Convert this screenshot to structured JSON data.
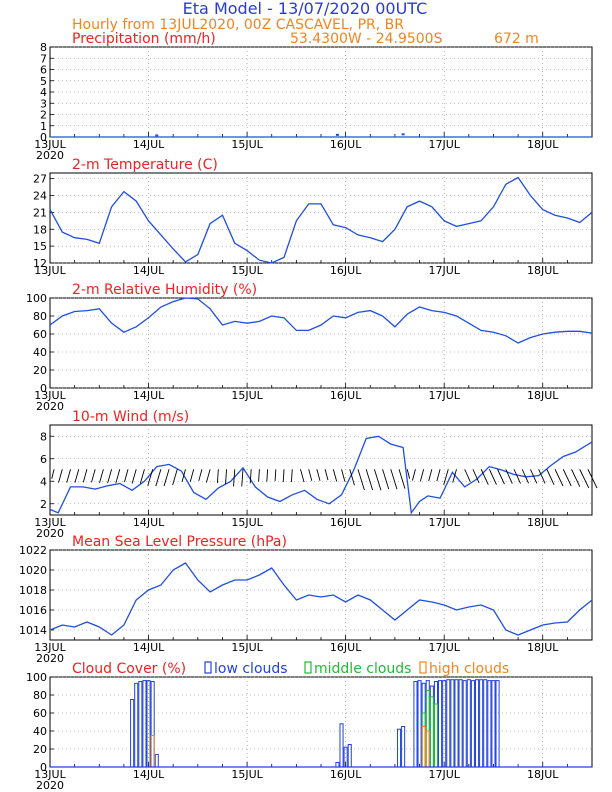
{
  "header": {
    "title": "Eta Model - 13/07/2020 00UTC",
    "subtitle": "Hourly from 13JUL2020, 00Z  CASCAVEL, PR, BR",
    "coords": "53.4300W - 24.9500S",
    "elevation": "672  m"
  },
  "colors": {
    "title": "#2a3bd6",
    "header": "#f0851f",
    "panel_title": "#ee2222",
    "line": "#1f4fe0",
    "low": "#2244dd",
    "mid": "#22bb33",
    "high": "#f0851f",
    "grid": "#888888"
  },
  "x_axis": {
    "day_labels": [
      "13JUL",
      "14JUL",
      "15JUL",
      "16JUL",
      "17JUL",
      "18JUL"
    ],
    "year_label": "2020"
  },
  "chart_data": [
    {
      "type": "line",
      "id": "precip",
      "title": "Precipitation (mm/h)",
      "ylim": [
        0,
        8
      ],
      "yticks": [
        0,
        1,
        2,
        3,
        4,
        5,
        6,
        7,
        8
      ],
      "x_hours": [
        0,
        10,
        20,
        30,
        40,
        50,
        60,
        70,
        80,
        90,
        100,
        110,
        120,
        130,
        132
      ],
      "values": [
        0,
        0,
        0,
        0,
        0,
        0,
        0,
        0,
        0,
        0,
        0,
        0,
        0,
        0,
        0
      ],
      "markers": [
        {
          "hour": 26,
          "value": 0.05
        },
        {
          "hour": 70,
          "value": 0.1
        },
        {
          "hour": 86,
          "value": 0.15
        }
      ]
    },
    {
      "type": "line",
      "id": "temp",
      "title": "2-m Temperature (C)",
      "ylim": [
        12,
        28
      ],
      "yticks": [
        12,
        15,
        18,
        21,
        24,
        27
      ],
      "x_hours": [
        0,
        3,
        6,
        9,
        12,
        15,
        18,
        21,
        24,
        27,
        30,
        33,
        36,
        39,
        42,
        45,
        48,
        51,
        54,
        57,
        60,
        63,
        66,
        69,
        72,
        75,
        78,
        81,
        84,
        87,
        90,
        93,
        96,
        99,
        102,
        105,
        108,
        111,
        114,
        117,
        120,
        123,
        126,
        129,
        132
      ],
      "values": [
        21.5,
        17.5,
        16.5,
        16.2,
        15.5,
        22,
        24.7,
        23,
        19.5,
        17,
        14.5,
        12.2,
        13.5,
        19,
        20.5,
        15.5,
        14.2,
        12.5,
        12,
        13,
        19.5,
        22.5,
        22.5,
        18.8,
        18.3,
        17,
        16.5,
        15.8,
        18,
        22,
        23,
        22,
        19.5,
        18.5,
        19,
        19.5,
        22,
        26,
        27.2,
        24,
        21.5,
        20.5,
        20,
        19.2,
        21
      ]
    },
    {
      "type": "line",
      "id": "rh",
      "title": "2-m Relative Humidity (%)",
      "ylim": [
        0,
        100
      ],
      "yticks": [
        0,
        20,
        40,
        60,
        80,
        100
      ],
      "x_hours": [
        0,
        3,
        6,
        9,
        12,
        15,
        18,
        21,
        24,
        27,
        30,
        33,
        36,
        39,
        42,
        45,
        48,
        51,
        54,
        57,
        60,
        63,
        66,
        69,
        72,
        75,
        78,
        81,
        84,
        87,
        90,
        93,
        96,
        99,
        102,
        105,
        108,
        111,
        114,
        117,
        120,
        123,
        126,
        129,
        132
      ],
      "values": [
        70,
        80,
        85,
        86,
        88,
        72,
        62,
        68,
        78,
        90,
        96,
        100,
        99,
        88,
        70,
        74,
        72,
        74,
        80,
        78,
        64,
        64,
        70,
        80,
        78,
        84,
        86,
        80,
        68,
        82,
        90,
        86,
        84,
        80,
        72,
        64,
        62,
        58,
        50,
        56,
        60,
        62,
        63,
        63,
        61
      ]
    },
    {
      "type": "line",
      "id": "wind",
      "title": "10-m Wind (m/s)",
      "ylim": [
        1,
        9
      ],
      "yticks": [
        2,
        4,
        6,
        8
      ],
      "x_hours": [
        0,
        2,
        5,
        8,
        11,
        14,
        17,
        20,
        23,
        26,
        29,
        32,
        35,
        38,
        41,
        44,
        47,
        50,
        53,
        56,
        59,
        62,
        65,
        68,
        71,
        74,
        77,
        80,
        83,
        86,
        88,
        90,
        92,
        95,
        98,
        101,
        104,
        107,
        110,
        113,
        116,
        119,
        122,
        125,
        128,
        132
      ],
      "values": [
        1.5,
        1.2,
        3.5,
        3.5,
        3.3,
        3.6,
        3.8,
        3.2,
        4,
        5.3,
        5.5,
        4.9,
        3,
        2.4,
        3.4,
        4,
        5.2,
        3.5,
        2.6,
        2.2,
        2.8,
        3.2,
        2.4,
        2,
        2.8,
        5,
        7.8,
        8,
        7.3,
        7,
        1.2,
        2.2,
        2.7,
        2.5,
        4.8,
        3.5,
        4.2,
        5.3,
        5,
        4.6,
        4.4,
        4.5,
        5.4,
        6.2,
        6.6,
        7.5
      ]
    },
    {
      "type": "line",
      "id": "mslp",
      "title": "Mean Sea Level Pressure (hPa)",
      "ylim": [
        1013,
        1022
      ],
      "yticks": [
        1014,
        1016,
        1018,
        1020,
        1022
      ],
      "x_hours": [
        0,
        3,
        6,
        9,
        12,
        15,
        18,
        21,
        24,
        27,
        30,
        33,
        36,
        39,
        42,
        45,
        48,
        51,
        54,
        57,
        60,
        63,
        66,
        69,
        72,
        75,
        78,
        81,
        84,
        87,
        90,
        93,
        96,
        99,
        102,
        105,
        108,
        111,
        114,
        117,
        120,
        123,
        126,
        129,
        132
      ],
      "values": [
        1014,
        1014.5,
        1014.3,
        1014.8,
        1014.3,
        1013.5,
        1014.5,
        1017,
        1018,
        1018.5,
        1020,
        1020.7,
        1019,
        1017.8,
        1018.5,
        1019,
        1019,
        1019.5,
        1020.2,
        1018.5,
        1017,
        1017.5,
        1017.3,
        1017.5,
        1016.8,
        1017.5,
        1017,
        1016,
        1015,
        1016,
        1017,
        1016.8,
        1016.5,
        1016,
        1016.3,
        1016.5,
        1016,
        1014,
        1013.5,
        1014,
        1014.5,
        1014.7,
        1014.8,
        1016,
        1017
      ]
    },
    {
      "type": "bar",
      "id": "cloud",
      "title": "Cloud Cover (%)",
      "ylim": [
        0,
        100
      ],
      "yticks": [
        0,
        20,
        40,
        60,
        80,
        100
      ],
      "legend": [
        {
          "key": "low",
          "label": "low clouds"
        },
        {
          "key": "mid",
          "label": "middle clouds"
        },
        {
          "key": "high",
          "label": "high clouds"
        }
      ],
      "series": [
        {
          "name": "low clouds",
          "key": "low",
          "hours": [
            20,
            21,
            22,
            23,
            24,
            25,
            26,
            70,
            71,
            72,
            73,
            85,
            86,
            89,
            90,
            91,
            92,
            93,
            94,
            95,
            96,
            97,
            98,
            99,
            100,
            101,
            102,
            103,
            104,
            105,
            106,
            107,
            108,
            109
          ],
          "values": [
            75,
            93,
            95,
            96,
            96,
            95,
            14,
            5,
            48,
            22,
            25,
            42,
            45,
            95,
            96,
            93,
            96,
            90,
            95,
            96,
            96,
            97,
            97,
            97,
            97,
            96,
            97,
            96,
            97,
            97,
            97,
            96,
            96,
            96
          ]
        },
        {
          "name": "middle clouds",
          "key": "mid",
          "hours": [
            91,
            92,
            93,
            94
          ],
          "values": [
            60,
            85,
            78,
            70
          ]
        },
        {
          "name": "high clouds",
          "key": "high",
          "hours": [
            25,
            91,
            92
          ],
          "values": [
            35,
            45,
            40
          ]
        }
      ]
    }
  ]
}
